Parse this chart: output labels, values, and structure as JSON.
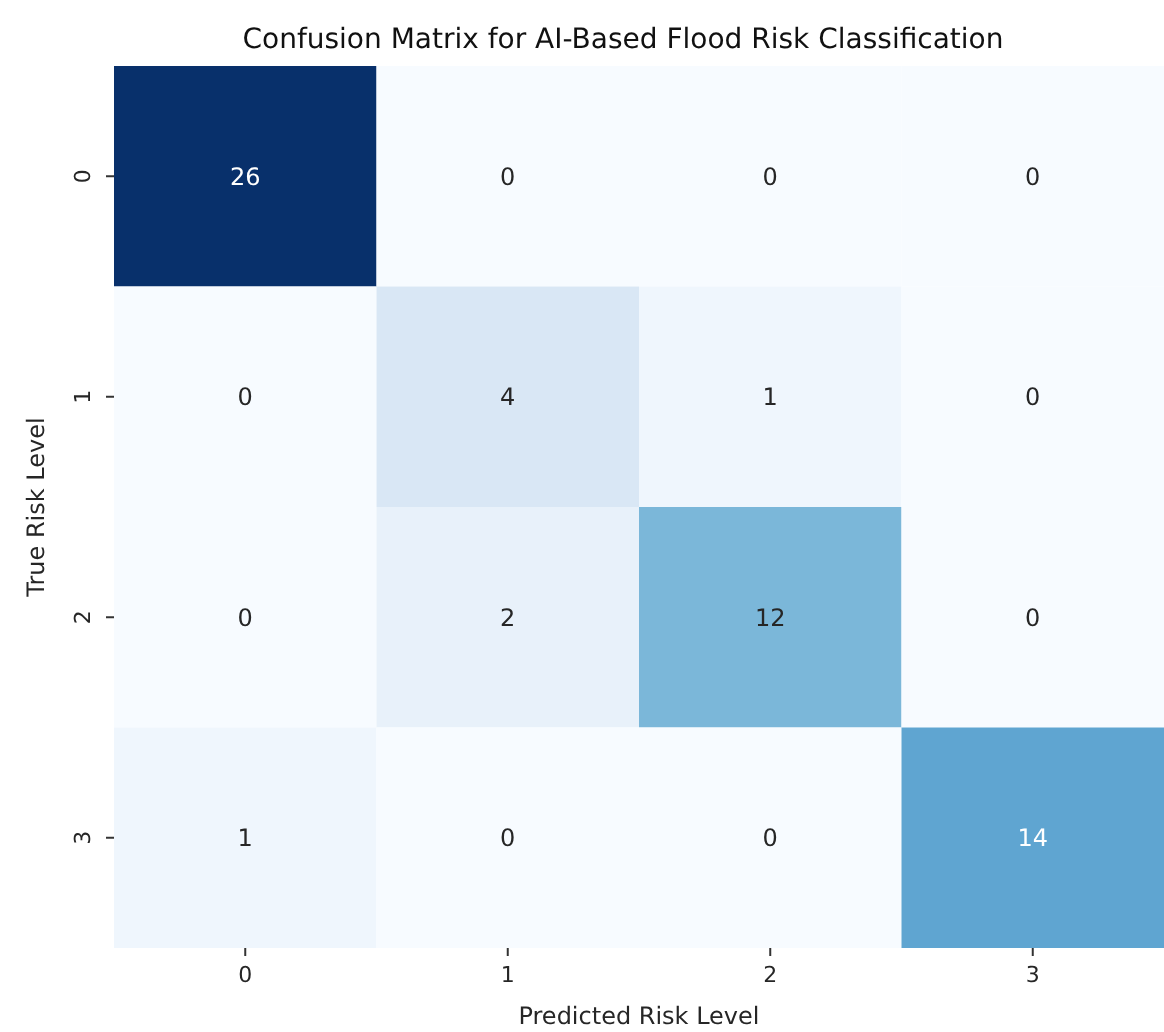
{
  "chart_data": {
    "type": "heatmap",
    "title": "Confusion Matrix for AI-Based Flood Risk Classification",
    "xlabel": "Predicted Risk Level",
    "ylabel": "True Risk Level",
    "categories": [
      "0",
      "1",
      "2",
      "3"
    ],
    "y_categories": [
      "0",
      "1",
      "2",
      "3"
    ],
    "cells": [
      [
        26,
        0,
        0,
        0
      ],
      [
        0,
        4,
        1,
        0
      ],
      [
        0,
        2,
        12,
        0
      ],
      [
        1,
        0,
        0,
        14
      ]
    ],
    "data_labels": true
  }
}
